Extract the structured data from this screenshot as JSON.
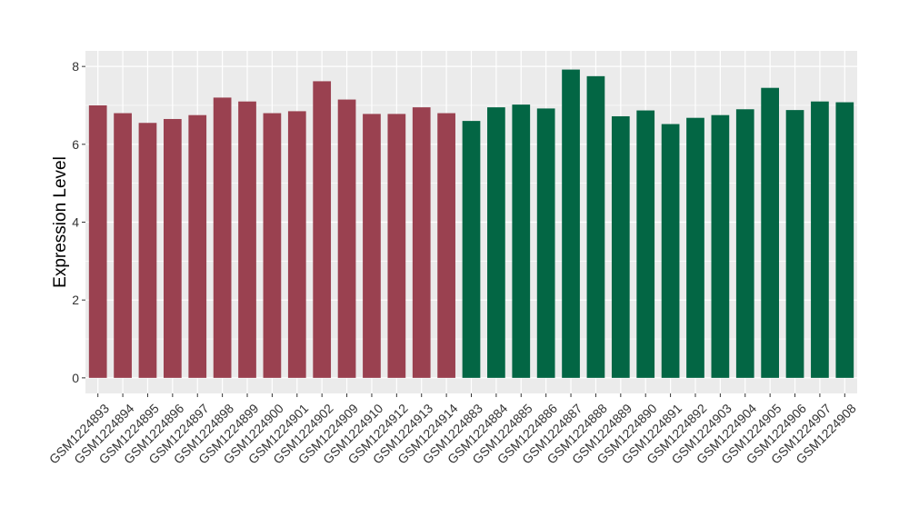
{
  "chart_data": {
    "type": "bar",
    "title": "",
    "xlabel": "",
    "ylabel": "Expression Level",
    "ylim": [
      -0.4,
      8.4
    ],
    "yticks": [
      0,
      2,
      4,
      6,
      8
    ],
    "grid": true,
    "legend": "none",
    "colors": {
      "group_a": "#9a4150",
      "group_b": "#036644",
      "panel_bg": "#ebebeb",
      "grid": "#ffffff"
    },
    "categories": [
      "GSM1224893",
      "GSM1224894",
      "GSM1224895",
      "GSM1224896",
      "GSM1224897",
      "GSM1224898",
      "GSM1224899",
      "GSM1224900",
      "GSM1224901",
      "GSM1224902",
      "GSM1224909",
      "GSM1224910",
      "GSM1224912",
      "GSM1224913",
      "GSM1224914",
      "GSM1224883",
      "GSM1224884",
      "GSM1224885",
      "GSM1224886",
      "GSM1224887",
      "GSM1224888",
      "GSM1224889",
      "GSM1224890",
      "GSM1224891",
      "GSM1224892",
      "GSM1224903",
      "GSM1224904",
      "GSM1224905",
      "GSM1224906",
      "GSM1224907",
      "GSM1224908"
    ],
    "values": [
      7.0,
      6.8,
      6.55,
      6.65,
      6.75,
      7.2,
      7.1,
      6.8,
      6.85,
      7.62,
      7.15,
      6.78,
      6.78,
      6.95,
      6.8,
      6.6,
      6.95,
      7.02,
      6.92,
      7.92,
      7.75,
      6.72,
      6.87,
      6.52,
      6.68,
      6.75,
      6.9,
      7.45,
      6.88,
      7.1,
      7.08
    ],
    "groups": [
      "a",
      "a",
      "a",
      "a",
      "a",
      "a",
      "a",
      "a",
      "a",
      "a",
      "a",
      "a",
      "a",
      "a",
      "a",
      "b",
      "b",
      "b",
      "b",
      "b",
      "b",
      "b",
      "b",
      "b",
      "b",
      "b",
      "b",
      "b",
      "b",
      "b",
      "b"
    ]
  }
}
